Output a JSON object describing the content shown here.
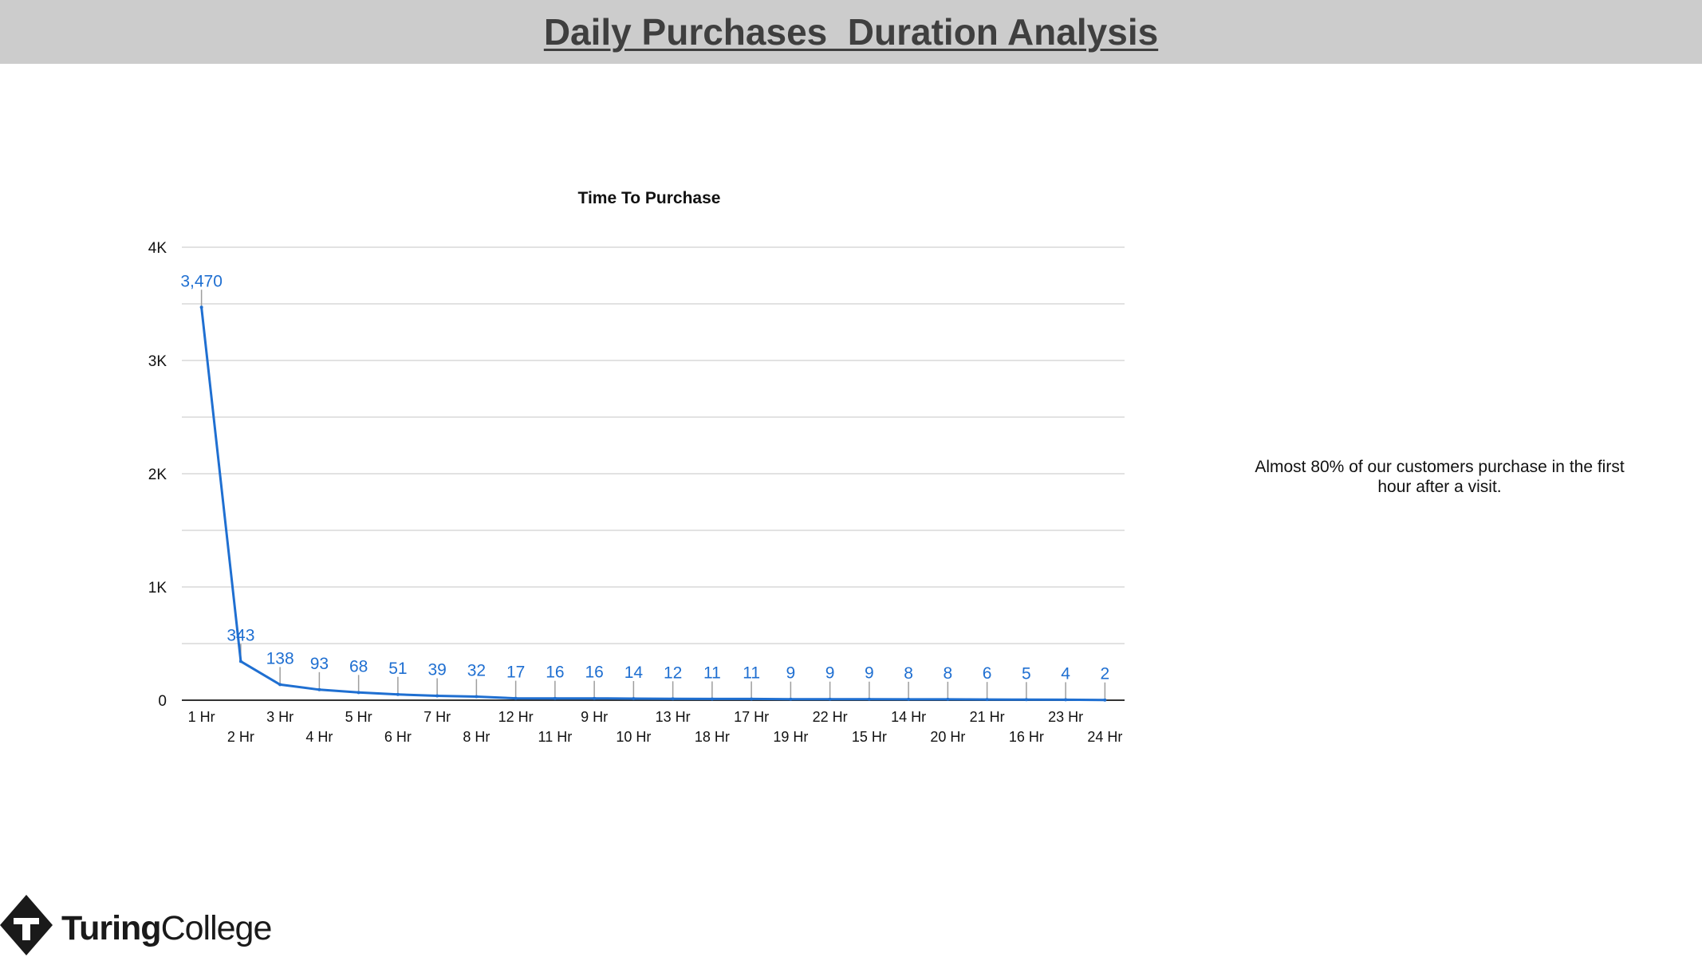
{
  "page": {
    "title": "Daily Purchases  Duration Analysis",
    "insight": "Almost 80% of our customers purchase in the first hour after a visit."
  },
  "brand": {
    "name_bold": "Turing",
    "name_regular": "College"
  },
  "colors": {
    "line": "#1f6fd1",
    "label": "#1f6fd1",
    "grid": "#d9d9d9",
    "axis": "#333333",
    "header_bg": "#cccccc"
  },
  "chart_data": {
    "type": "line",
    "title": "Time To Purchase",
    "xlabel": "",
    "ylabel": "",
    "categories": [
      "1 Hr",
      "2 Hr",
      "3 Hr",
      "4 Hr",
      "5 Hr",
      "6 Hr",
      "7 Hr",
      "8 Hr",
      "12 Hr",
      "11 Hr",
      "9 Hr",
      "10 Hr",
      "13 Hr",
      "18 Hr",
      "17 Hr",
      "19 Hr",
      "22 Hr",
      "15 Hr",
      "14 Hr",
      "20 Hr",
      "21 Hr",
      "16 Hr",
      "23 Hr",
      "24 Hr"
    ],
    "series": [
      {
        "values": [
          3470,
          343,
          138,
          93,
          68,
          51,
          39,
          32,
          17,
          16,
          16,
          14,
          12,
          11,
          11,
          9,
          9,
          9,
          8,
          8,
          6,
          5,
          4,
          2
        ],
        "labels": [
          "3,470",
          "343",
          "138",
          "93",
          "68",
          "51",
          "39",
          "32",
          "17",
          "16",
          "16",
          "14",
          "12",
          "11",
          "11",
          "9",
          "9",
          "9",
          "8",
          "8",
          "6",
          "5",
          "4",
          "2"
        ]
      }
    ],
    "ylim": [
      0,
      4000
    ],
    "yticks": [
      0,
      1000,
      2000,
      3000,
      4000
    ],
    "ytick_labels": [
      "0",
      "1K",
      "2K",
      "3K",
      "4K"
    ],
    "grid": true,
    "legend": "none"
  }
}
